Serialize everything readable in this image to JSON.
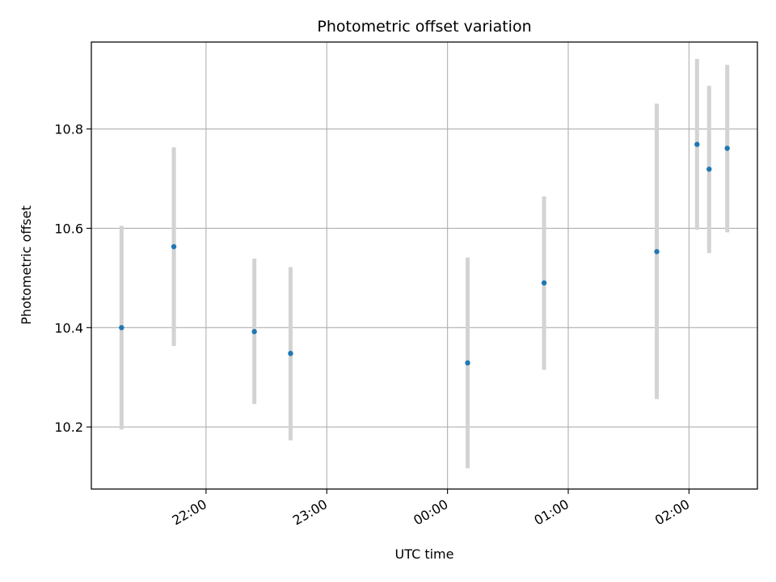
{
  "chart_data": {
    "type": "scatter",
    "title": "Photometric offset variation",
    "xlabel": "UTC time",
    "ylabel": "Photometric offset",
    "grid": true,
    "x_axis_type": "time",
    "xlim": [
      "21:03",
      "02:34"
    ],
    "ylim": [
      10.075,
      10.975
    ],
    "x_ticks": [
      "22:00",
      "23:00",
      "00:00",
      "01:00",
      "02:00"
    ],
    "y_ticks": [
      "10.2",
      "10.4",
      "10.6",
      "10.8"
    ],
    "series": [
      {
        "points": [
          {
            "x": "21:18",
            "y": 10.4,
            "err_low": 10.195,
            "err_high": 10.605
          },
          {
            "x": "21:44",
            "y": 10.563,
            "err_low": 10.363,
            "err_high": 10.763
          },
          {
            "x": "22:24",
            "y": 10.392,
            "err_low": 10.246,
            "err_high": 10.539
          },
          {
            "x": "22:42",
            "y": 10.348,
            "err_low": 10.173,
            "err_high": 10.522
          },
          {
            "x": "00:10",
            "y": 10.329,
            "err_low": 10.117,
            "err_high": 10.541
          },
          {
            "x": "00:48",
            "y": 10.49,
            "err_low": 10.315,
            "err_high": 10.664
          },
          {
            "x": "01:44",
            "y": 10.553,
            "err_low": 10.256,
            "err_high": 10.851
          },
          {
            "x": "02:04",
            "y": 10.769,
            "err_low": 10.597,
            "err_high": 10.941
          },
          {
            "x": "02:10",
            "y": 10.719,
            "err_low": 10.55,
            "err_high": 10.887
          },
          {
            "x": "02:19",
            "y": 10.761,
            "err_low": 10.592,
            "err_high": 10.929
          }
        ]
      }
    ],
    "colors": {
      "point": "#1f77b4",
      "errorbar": "#d3d3d3",
      "grid": "#b0b0b0",
      "axes": "#000000"
    }
  }
}
